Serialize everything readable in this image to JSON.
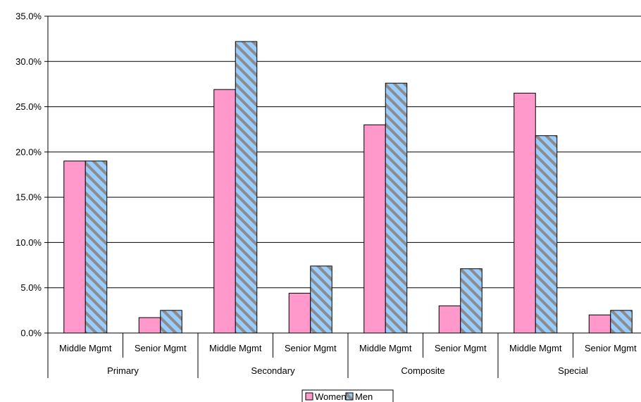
{
  "chart_data": {
    "type": "bar",
    "groups": [
      "Primary",
      "Secondary",
      "Composite",
      "Special"
    ],
    "subcategories": [
      "Middle Mgmt",
      "Senior Mgmt"
    ],
    "categories": [
      "Primary / Middle Mgmt",
      "Primary / Senior Mgmt",
      "Secondary / Middle Mgmt",
      "Secondary / Senior Mgmt",
      "Composite / Middle Mgmt",
      "Composite / Senior Mgmt",
      "Special / Middle Mgmt",
      "Special / Senior Mgmt"
    ],
    "series": [
      {
        "name": "Women",
        "color": "#ff99cc",
        "pattern": "solid",
        "values": [
          19.0,
          1.7,
          26.9,
          4.4,
          23.0,
          3.0,
          26.5,
          2.0
        ]
      },
      {
        "name": "Men",
        "color": "#99ccff",
        "pattern": "diagonal-stripes",
        "stripe_color": "#8c8c8c",
        "values": [
          19.0,
          2.5,
          32.2,
          7.4,
          27.6,
          7.1,
          21.8,
          2.5
        ]
      }
    ],
    "y_ticks": [
      "0.0%",
      "5.0%",
      "10.0%",
      "15.0%",
      "20.0%",
      "25.0%",
      "30.0%",
      "35.0%"
    ],
    "ylim": [
      0,
      35
    ],
    "grid": true,
    "legend_position": "bottom-center",
    "title": "",
    "xlabel": "",
    "ylabel": ""
  }
}
